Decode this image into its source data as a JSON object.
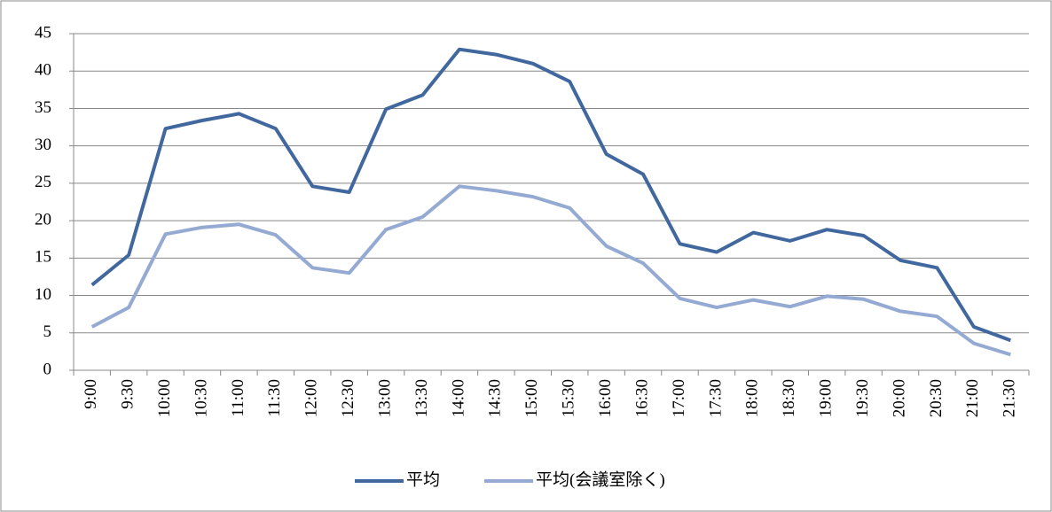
{
  "chart_data": {
    "type": "line",
    "categories": [
      "9:00",
      "9:30",
      "10:00",
      "10:30",
      "11:00",
      "11:30",
      "12:00",
      "12:30",
      "13:00",
      "13:30",
      "14:00",
      "14:30",
      "15:00",
      "15:30",
      "16:00",
      "16:30",
      "17:00",
      "17:30",
      "18:00",
      "18:30",
      "19:00",
      "19:30",
      "20:00",
      "20:30",
      "21:00",
      "21:30"
    ],
    "series": [
      {
        "name": "平均",
        "color": "#41689e",
        "values": [
          11.4,
          15.4,
          32.3,
          33.4,
          34.3,
          32.3,
          24.6,
          23.8,
          34.9,
          36.8,
          42.9,
          42.2,
          41.0,
          38.6,
          28.9,
          26.2,
          16.9,
          15.8,
          18.4,
          17.3,
          18.8,
          18.0,
          14.7,
          13.7,
          5.8,
          4.0
        ]
      },
      {
        "name": "平均(会議室除く)",
        "color": "#94aad2",
        "values": [
          5.8,
          8.4,
          18.2,
          19.1,
          19.5,
          18.1,
          13.7,
          13.0,
          18.8,
          20.5,
          24.6,
          24.0,
          23.2,
          21.7,
          16.6,
          14.3,
          9.6,
          8.4,
          9.4,
          8.5,
          9.9,
          9.5,
          7.9,
          7.2,
          3.6,
          2.1
        ]
      }
    ],
    "ylim": [
      0,
      45
    ],
    "yticks": [
      0,
      5,
      10,
      15,
      20,
      25,
      30,
      35,
      40,
      45
    ],
    "grid": true,
    "legend": "bottom"
  }
}
